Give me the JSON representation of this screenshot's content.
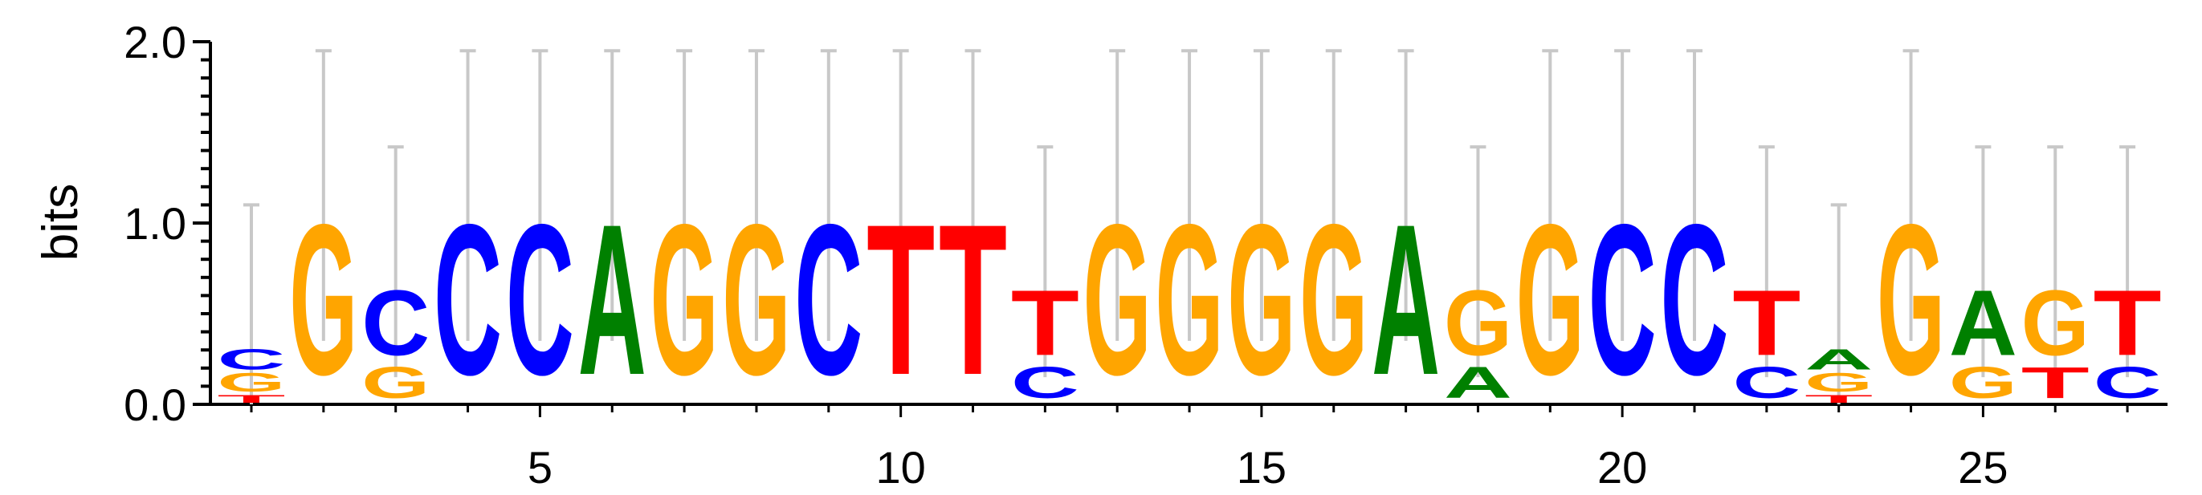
{
  "chart_data": {
    "type": "sequence-logo",
    "ylabel": "bits",
    "ylim": [
      0,
      2
    ],
    "yticks": [
      {
        "value": 0,
        "label": "0.0"
      },
      {
        "value": 1,
        "label": "1.0"
      },
      {
        "value": 2,
        "label": "2.0"
      }
    ],
    "xticks": [
      {
        "value": 5,
        "label": "5"
      },
      {
        "value": 10,
        "label": "10"
      },
      {
        "value": 15,
        "label": "15"
      },
      {
        "value": 20,
        "label": "20"
      },
      {
        "value": 25,
        "label": "25"
      }
    ],
    "colors": {
      "A": "#008000",
      "C": "#0000ff",
      "G": "#ffa500",
      "T": "#ff0000",
      "errorbar": "#c8c8c8"
    },
    "positions": [
      {
        "pos": 1,
        "error": [
          0,
          1.1
        ],
        "letters": [
          {
            "base": "T",
            "bits": 0.05
          },
          {
            "base": "G",
            "bits": 0.12
          },
          {
            "base": "C",
            "bits": 0.13
          }
        ]
      },
      {
        "pos": 2,
        "error": [
          0.35,
          1.95
        ],
        "letters": [
          {
            "base": "G",
            "bits": 0.97
          }
        ]
      },
      {
        "pos": 3,
        "error": [
          0.15,
          1.42
        ],
        "letters": [
          {
            "base": "G",
            "bits": 0.2
          },
          {
            "base": "C",
            "bits": 0.42
          }
        ]
      },
      {
        "pos": 4,
        "error": [
          0.35,
          1.95
        ],
        "letters": [
          {
            "base": "C",
            "bits": 0.97
          }
        ]
      },
      {
        "pos": 5,
        "error": [
          0.35,
          1.95
        ],
        "letters": [
          {
            "base": "C",
            "bits": 0.97
          }
        ]
      },
      {
        "pos": 6,
        "error": [
          0.35,
          1.95
        ],
        "letters": [
          {
            "base": "A",
            "bits": 0.97
          }
        ]
      },
      {
        "pos": 7,
        "error": [
          0.35,
          1.95
        ],
        "letters": [
          {
            "base": "G",
            "bits": 0.97
          }
        ]
      },
      {
        "pos": 8,
        "error": [
          0.35,
          1.95
        ],
        "letters": [
          {
            "base": "G",
            "bits": 0.97
          }
        ]
      },
      {
        "pos": 9,
        "error": [
          0.35,
          1.95
        ],
        "letters": [
          {
            "base": "C",
            "bits": 0.97
          }
        ]
      },
      {
        "pos": 10,
        "error": [
          0.35,
          1.95
        ],
        "letters": [
          {
            "base": "T",
            "bits": 0.97
          }
        ]
      },
      {
        "pos": 11,
        "error": [
          0.35,
          1.95
        ],
        "letters": [
          {
            "base": "T",
            "bits": 0.97
          }
        ]
      },
      {
        "pos": 12,
        "error": [
          0.15,
          1.42
        ],
        "letters": [
          {
            "base": "C",
            "bits": 0.2
          },
          {
            "base": "T",
            "bits": 0.42
          }
        ]
      },
      {
        "pos": 13,
        "error": [
          0.35,
          1.95
        ],
        "letters": [
          {
            "base": "G",
            "bits": 0.97
          }
        ]
      },
      {
        "pos": 14,
        "error": [
          0.35,
          1.95
        ],
        "letters": [
          {
            "base": "G",
            "bits": 0.97
          }
        ]
      },
      {
        "pos": 15,
        "error": [
          0.35,
          1.95
        ],
        "letters": [
          {
            "base": "G",
            "bits": 0.97
          }
        ]
      },
      {
        "pos": 16,
        "error": [
          0.35,
          1.95
        ],
        "letters": [
          {
            "base": "G",
            "bits": 0.97
          }
        ]
      },
      {
        "pos": 17,
        "error": [
          0.35,
          1.95
        ],
        "letters": [
          {
            "base": "A",
            "bits": 0.97
          }
        ]
      },
      {
        "pos": 18,
        "error": [
          0.15,
          1.42
        ],
        "letters": [
          {
            "base": "A",
            "bits": 0.2
          },
          {
            "base": "G",
            "bits": 0.42
          }
        ]
      },
      {
        "pos": 19,
        "error": [
          0.35,
          1.95
        ],
        "letters": [
          {
            "base": "G",
            "bits": 0.97
          }
        ]
      },
      {
        "pos": 20,
        "error": [
          0.35,
          1.95
        ],
        "letters": [
          {
            "base": "C",
            "bits": 0.97
          }
        ]
      },
      {
        "pos": 21,
        "error": [
          0.35,
          1.95
        ],
        "letters": [
          {
            "base": "C",
            "bits": 0.97
          }
        ]
      },
      {
        "pos": 22,
        "error": [
          0.15,
          1.42
        ],
        "letters": [
          {
            "base": "C",
            "bits": 0.2
          },
          {
            "base": "T",
            "bits": 0.42
          }
        ]
      },
      {
        "pos": 23,
        "error": [
          0,
          1.1
        ],
        "letters": [
          {
            "base": "T",
            "bits": 0.05
          },
          {
            "base": "G",
            "bits": 0.12
          },
          {
            "base": "A",
            "bits": 0.13
          }
        ]
      },
      {
        "pos": 24,
        "error": [
          0.35,
          1.95
        ],
        "letters": [
          {
            "base": "G",
            "bits": 0.97
          }
        ]
      },
      {
        "pos": 25,
        "error": [
          0.15,
          1.42
        ],
        "letters": [
          {
            "base": "G",
            "bits": 0.2
          },
          {
            "base": "A",
            "bits": 0.42
          }
        ]
      },
      {
        "pos": 26,
        "error": [
          0.15,
          1.42
        ],
        "letters": [
          {
            "base": "T",
            "bits": 0.2
          },
          {
            "base": "G",
            "bits": 0.42
          }
        ]
      },
      {
        "pos": 27,
        "error": [
          0.15,
          1.42
        ],
        "letters": [
          {
            "base": "C",
            "bits": 0.2
          },
          {
            "base": "T",
            "bits": 0.42
          }
        ]
      }
    ]
  }
}
